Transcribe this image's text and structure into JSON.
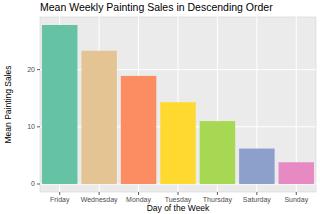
{
  "chart_data": {
    "type": "bar",
    "title": "Mean Weekly Painting Sales in Descending Order",
    "x_label": "Day of the Week",
    "y_label": "Mean Painting Sales",
    "categories": [
      "Friday",
      "Wednesday",
      "Monday",
      "Tuesday",
      "Thursday",
      "Saturday",
      "Sunday"
    ],
    "values": [
      27.8,
      23.3,
      18.9,
      14.3,
      11.0,
      6.2,
      3.8
    ],
    "colors": [
      "#66c2a5",
      "#e5c494",
      "#fc8d62",
      "#ffd92f",
      "#a6d854",
      "#8da0cb",
      "#e78ac3"
    ],
    "ylim": [
      -1.4,
      29.2
    ],
    "yticks": [
      0,
      10,
      20
    ],
    "grid": true
  }
}
